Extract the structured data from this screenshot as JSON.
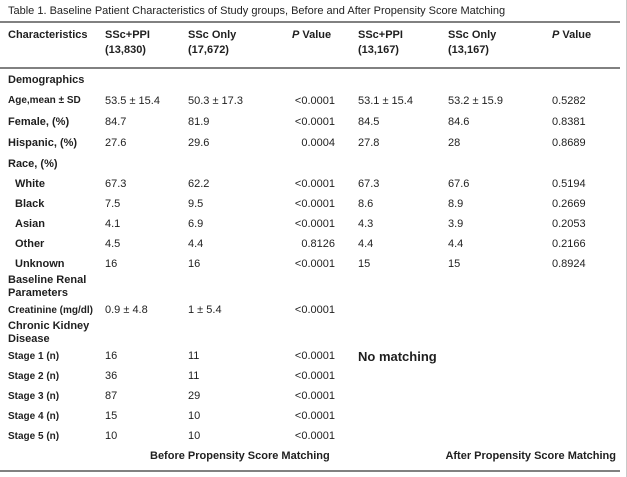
{
  "title": "Table 1. Baseline Patient Characteristics of Study groups, Before and After Propensity Score Matching",
  "colors": {
    "text": "#1f1f1f",
    "rule_gray": "#818181",
    "page_edge": "#c9c9c9"
  },
  "table": {
    "header": {
      "characteristics": "Characteristics",
      "columns": [
        {
          "line1": "SSc+PPI",
          "line2": "(13,830)"
        },
        {
          "line1": "SSc Only",
          "line2": "(17,672)"
        },
        {
          "p_italic": "P",
          "label": " Value"
        },
        {
          "line1": "SSc+PPI",
          "line2": "(13,167)"
        },
        {
          "line1": "SSc Only",
          "line2": "(13,167)"
        },
        {
          "p_italic": "P",
          "label": " Value"
        }
      ]
    },
    "rows": [
      {
        "type": "section",
        "label": "Demographics"
      },
      {
        "label": "Age,mean ± SD",
        "values": [
          "53.5 ± 15.4",
          "50.3 ± 17.3",
          "<0.0001",
          "53.1 ± 15.4",
          "53.2 ± 15.9",
          "0.5282"
        ]
      },
      {
        "label": "Female, (%)",
        "values": [
          "84.7",
          "81.9",
          "<0.0001",
          "84.5",
          "84.6",
          "0.8381"
        ]
      },
      {
        "label": "Hispanic, (%)",
        "values": [
          "27.6",
          "29.6",
          "0.0004",
          "27.8",
          "28",
          "0.8689"
        ]
      },
      {
        "type": "section",
        "label": "Race, (%)"
      },
      {
        "label": "White",
        "values": [
          "67.3",
          "62.2",
          "<0.0001",
          "67.3",
          "67.6",
          "0.5194"
        ]
      },
      {
        "label": "Black",
        "values": [
          "7.5",
          "9.5",
          "<0.0001",
          "8.6",
          "8.9",
          "0.2669"
        ]
      },
      {
        "label": "Asian",
        "values": [
          "4.1",
          "6.9",
          "<0.0001",
          "4.3",
          "3.9",
          "0.2053"
        ]
      },
      {
        "label": "Other",
        "values": [
          "4.5",
          "4.4",
          "0.8126",
          "4.4",
          "4.4",
          "0.2166"
        ]
      },
      {
        "label": "Unknown",
        "values": [
          "16",
          "16",
          "<0.0001",
          "15",
          "15",
          "0.8924"
        ]
      },
      {
        "type": "section",
        "label": "Baseline Renal Parameters"
      },
      {
        "label": "Creatinine (mg/dl)",
        "values": [
          "0.9 ± 4.8",
          "1 ± 5.4",
          "<0.0001"
        ]
      },
      {
        "type": "section",
        "label": "Chronic Kidney Disease"
      },
      {
        "label": "Stage 1 (n)",
        "values": [
          "16",
          "11",
          "<0.0001"
        ]
      },
      {
        "label": "Stage 2 (n)",
        "values": [
          "36",
          "11",
          "<0.0001"
        ]
      },
      {
        "label": "Stage 3 (n)",
        "values": [
          "87",
          "29",
          "<0.0001"
        ]
      },
      {
        "label": "Stage 4 (n)",
        "values": [
          "15",
          "10",
          "<0.0001"
        ]
      },
      {
        "label": "Stage 5 (n)",
        "values": [
          "10",
          "10",
          "<0.0001"
        ]
      }
    ]
  },
  "annotations": {
    "no_matching": "No matching"
  },
  "footer": {
    "before": "Before Propensity Score Matching",
    "after": "After Propensity Score Matching"
  }
}
